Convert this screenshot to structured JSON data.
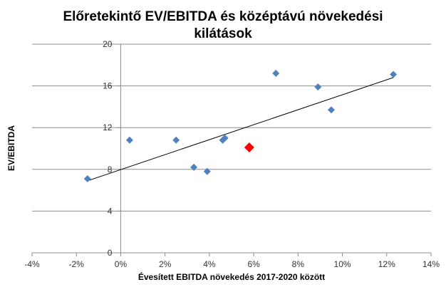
{
  "chart_data": {
    "type": "scatter",
    "title_lines": [
      "Előretekintő EV/EBITDA és középtávú növekedési",
      "kilátások"
    ],
    "xlabel": "Évesített EBITDA növekedés 2017-2020 között",
    "ylabel": "EV/EBITDA",
    "xlim": [
      -0.04,
      0.14
    ],
    "ylim": [
      0,
      20
    ],
    "x_ticks": [
      -0.04,
      -0.02,
      0,
      0.02,
      0.04,
      0.06,
      0.08,
      0.1,
      0.12,
      0.14
    ],
    "x_tick_labels": [
      "-4%",
      "-2%",
      "0%",
      "2%",
      "4%",
      "6%",
      "8%",
      "10%",
      "12%",
      "14%"
    ],
    "y_ticks": [
      0,
      4,
      8,
      12,
      16,
      20
    ],
    "y_tick_labels": [
      "0",
      "4",
      "8",
      "12",
      "16",
      "20"
    ],
    "grid": "horizontal",
    "legend": "none",
    "points": [
      {
        "x": -0.015,
        "y": 7.1
      },
      {
        "x": 0.004,
        "y": 10.8
      },
      {
        "x": 0.025,
        "y": 10.8
      },
      {
        "x": 0.033,
        "y": 8.2
      },
      {
        "x": 0.039,
        "y": 7.8
      },
      {
        "x": 0.046,
        "y": 10.8
      },
      {
        "x": 0.047,
        "y": 11.0
      },
      {
        "x": 0.07,
        "y": 17.2
      },
      {
        "x": 0.089,
        "y": 15.9
      },
      {
        "x": 0.095,
        "y": 13.7
      },
      {
        "x": 0.123,
        "y": 17.1
      }
    ],
    "highlight_point": {
      "x": 0.058,
      "y": 10.1
    },
    "trendline": {
      "x": [
        -0.015,
        0.123
      ],
      "y": [
        6.9,
        16.8
      ]
    },
    "colors": {
      "points": "#4F81BD",
      "highlight": "#FF0000",
      "trendline": "#000000",
      "grid": "#8C8C8C",
      "axis": "#8C8C8C"
    }
  }
}
